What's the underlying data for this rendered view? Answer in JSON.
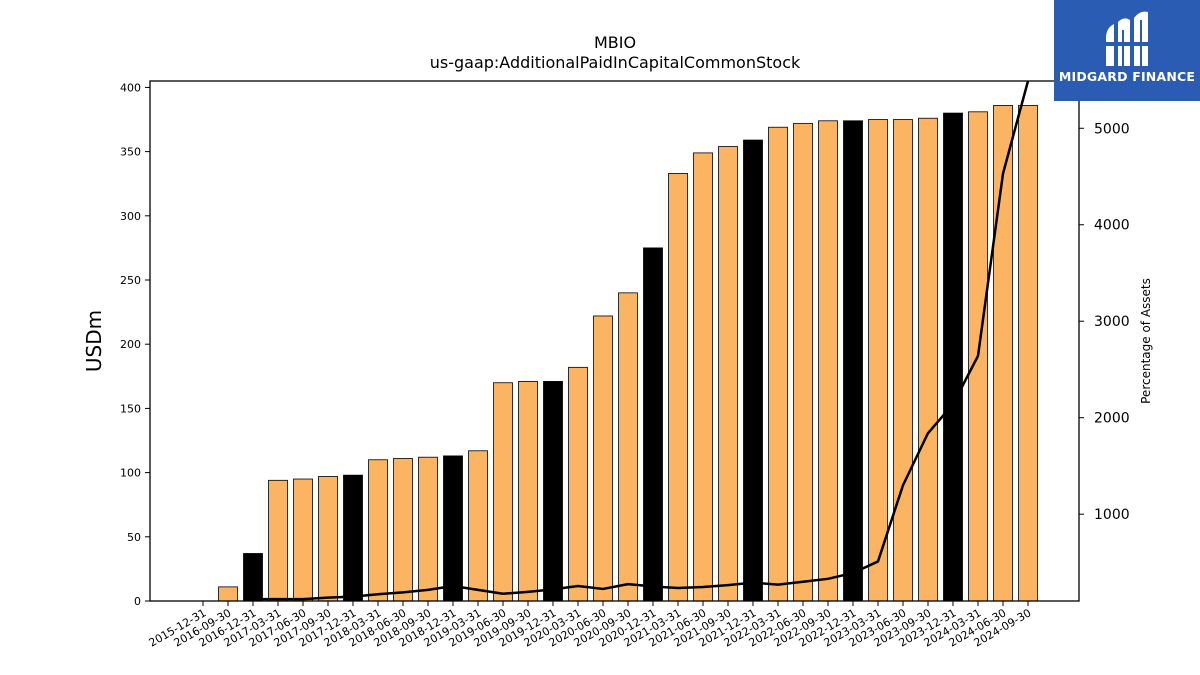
{
  "chart_data": {
    "type": "bar",
    "title": "MBIO",
    "subtitle": "us-gaap:AdditionalPaidInCapitalCommonStock",
    "ylabel": "USDm",
    "y2label": "Percentage of Assets",
    "ylim": [
      0,
      405
    ],
    "y2lim": [
      100,
      5490
    ],
    "yticks": [
      0,
      50,
      100,
      150,
      200,
      250,
      300,
      350,
      400
    ],
    "y2ticks": [
      1000,
      2000,
      3000,
      4000,
      5000
    ],
    "categories": [
      "2015-12-31",
      "2016-09-30",
      "2016-12-31",
      "2017-03-31",
      "2017-06-30",
      "2017-09-30",
      "2017-12-31",
      "2018-03-31",
      "2018-06-30",
      "2018-09-30",
      "2018-12-31",
      "2019-03-31",
      "2019-06-30",
      "2019-09-30",
      "2019-12-31",
      "2020-03-31",
      "2020-06-30",
      "2020-09-30",
      "2020-12-31",
      "2021-03-31",
      "2021-06-30",
      "2021-09-30",
      "2021-12-31",
      "2022-03-31",
      "2022-06-30",
      "2022-09-30",
      "2022-12-31",
      "2023-03-31",
      "2023-06-30",
      "2023-09-30",
      "2023-12-31",
      "2024-03-31",
      "2024-06-30",
      "2024-09-30"
    ],
    "series": [
      {
        "type": "bar",
        "values": [
          0,
          11,
          37,
          94,
          95,
          97,
          98,
          110,
          111,
          112,
          113,
          117,
          170,
          171,
          171,
          182,
          222,
          240,
          275,
          333,
          349,
          354,
          359,
          369,
          372,
          374,
          374,
          375,
          375,
          376,
          380,
          381,
          386,
          386
        ],
        "colors": [
          "#fbb462",
          "#000000"
        ],
        "color_pattern": [
          "orange",
          "orange",
          "black",
          "orange",
          "orange",
          "orange",
          "black",
          "orange",
          "orange",
          "orange",
          "black",
          "orange",
          "orange",
          "orange",
          "black",
          "orange",
          "orange",
          "orange",
          "black",
          "orange",
          "orange",
          "orange",
          "black",
          "orange",
          "orange",
          "orange",
          "black",
          "orange",
          "orange",
          "orange",
          "black",
          "orange",
          "orange",
          "orange"
        ]
      },
      {
        "type": "line",
        "axis": "right",
        "color": "#000000",
        "values": [
          null,
          null,
          120,
          120,
          120,
          135,
          145,
          170,
          190,
          215,
          255,
          215,
          175,
          195,
          220,
          255,
          225,
          275,
          250,
          235,
          245,
          265,
          290,
          270,
          300,
          330,
          390,
          510,
          1300,
          1840,
          2140,
          2640,
          4530,
          5490
        ]
      }
    ],
    "grid": false,
    "legend": "none"
  },
  "logo": {
    "text": "MIDGARD FINANCE",
    "bg_color": "#2b5cb4"
  }
}
